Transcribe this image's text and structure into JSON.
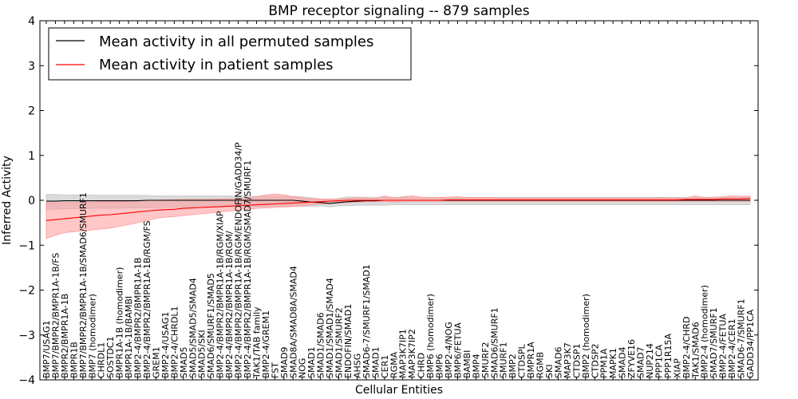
{
  "chart_data": {
    "type": "line",
    "title": "BMP receptor signaling -- 879 samples",
    "xlabel": "Cellular Entities",
    "ylabel": "Inferred Activity",
    "ylim": [
      -4,
      4
    ],
    "yticks": [
      "4",
      "3",
      "2",
      "1",
      "0",
      "−1",
      "−2",
      "−3",
      "−4"
    ],
    "ytick_values": [
      4,
      3,
      2,
      1,
      0,
      -1,
      -2,
      -3,
      -4
    ],
    "legend_position": "top-left",
    "colors": {
      "permuted": "#000000",
      "patient": "#ff0000",
      "permuted_band": "#c8c8c8",
      "patient_band": "#ff9999"
    },
    "categories": [
      "BMP7/USAG1",
      "BMP7/BMPR2/BMPR1A-1B/FS",
      "BMPR2/BMPR1A-1B",
      "BMPR1B",
      "BMP7/BMPR2/BMPR1A-1B/SMAD6/SMURF1",
      "BMP7 (homodimer)",
      "CHRDL1",
      "SOSTDC1",
      "BMPR1A-1B (homodimer)",
      "BMPR1A-1B/BAMBI",
      "BMP2-4/BMPR2/BMPR1A-1B",
      "BMP2-4/BMPR2/BMPR1A-1B/RGM/FS",
      "GREM1",
      "BMP2-4/USAG1",
      "BMP2-4/CHRDL1",
      "SMAD5",
      "SMAD5/SMAD5/SMAD4",
      "SMAD5/SKI",
      "SMAD6/SMURF1/SMAD5",
      "BMP2-4/BMPR2/BMPR1A-1B/RGM/XIAP",
      "BMP2-4/BMPR2/BMPR1A-1B/RGM/",
      "BMP2-4/BMPR2/BMPR1A-1B/RGM/ENDOFIN/GADD34/P",
      "BMP2-4/BMPR2/BMPR1A-1B/RGM/SMAD7/SMURF1",
      "TAK1/TAB family",
      "BMP2-4/GREM1",
      "FST",
      "SMAD9",
      "SMAD8A/SMAD8A/SMAD4",
      "NOG",
      "SMAD1",
      "SMAD1/SMAD6",
      "SMAD1/SMAD1/SMAD4",
      "SMAD1/SMURF2",
      "ENDOFIN/SMAD1",
      "AHSG",
      "SMAD6-7/SMURF1/SMAD1",
      "SMAD1",
      "CER1",
      "RGMA",
      "MAP3K7IP1",
      "MAP3K7IP2",
      "CHRD",
      "BMP6 (homodimer)",
      "BMP6",
      "BMP2-4/NOG",
      "BMP6/FETUA",
      "BAMBI",
      "BMP4",
      "SMURF2",
      "SMAD6/SMURF1",
      "SMURF1",
      "BMP2",
      "CTDSPL",
      "BMPR1A",
      "RGMB",
      "SKI",
      "SMAD6",
      "MAP3K7",
      "CTDSP1",
      "BMP2 (homodimer)",
      "CTDSP2",
      "PPM1A",
      "MAPK1",
      "SMAD4",
      "ZFYVE16",
      "SMAD7",
      "NUP214",
      "PPP1CA",
      "PPP1R15A",
      "XIAP",
      "BMP2-4/CHRD",
      "TAK1/SMAD6",
      "BMP2-4 (homodimer)",
      "SMAD7/SMURF1",
      "BMP2-4/FETUA",
      "BMP2-4/CER1",
      "SMAD6-7/SMURF1",
      "GADD34/PP1CA"
    ],
    "series": [
      {
        "name": "Mean activity in all permuted samples",
        "values": [
          -0.02,
          -0.02,
          -0.01,
          -0.01,
          -0.01,
          -0.01,
          -0.01,
          -0.01,
          -0.01,
          -0.01,
          -0.01,
          0.0,
          0.0,
          0.0,
          0.0,
          0.0,
          0.0,
          0.0,
          0.0,
          0.0,
          0.0,
          0.0,
          0.0,
          0.0,
          0.0,
          0.0,
          0.0,
          0.0,
          -0.02,
          -0.04,
          -0.05,
          -0.07,
          -0.05,
          -0.03,
          -0.02,
          -0.01,
          -0.01,
          0.0,
          0.0,
          0.0,
          0.0,
          0.0,
          0.0,
          0.0,
          0.0,
          0.0,
          0.0,
          0.0,
          0.0,
          0.0,
          0.0,
          0.0,
          0.0,
          0.0,
          0.0,
          0.0,
          0.0,
          0.0,
          0.0,
          0.0,
          0.0,
          0.0,
          0.0,
          0.0,
          0.0,
          0.0,
          0.0,
          0.0,
          0.0,
          0.0,
          0.0,
          0.0,
          0.0,
          0.0,
          0.0,
          0.0,
          0.0,
          0.0
        ],
        "lower": [
          -0.2,
          -0.2,
          -0.19,
          -0.19,
          -0.19,
          -0.18,
          -0.18,
          -0.18,
          -0.18,
          -0.17,
          -0.17,
          -0.17,
          -0.17,
          -0.16,
          -0.16,
          -0.16,
          -0.16,
          -0.15,
          -0.15,
          -0.15,
          -0.15,
          -0.14,
          -0.14,
          -0.14,
          -0.14,
          -0.13,
          -0.13,
          -0.13,
          -0.13,
          -0.14,
          -0.12,
          -0.15,
          -0.12,
          -0.12,
          -0.11,
          -0.11,
          -0.11,
          -0.11,
          -0.1,
          -0.1,
          -0.1,
          -0.1,
          -0.1,
          -0.1,
          -0.1,
          -0.1,
          -0.1,
          -0.1,
          -0.1,
          -0.1,
          -0.1,
          -0.1,
          -0.1,
          -0.1,
          -0.1,
          -0.1,
          -0.1,
          -0.1,
          -0.1,
          -0.1,
          -0.1,
          -0.1,
          -0.1,
          -0.1,
          -0.1,
          -0.1,
          -0.1,
          -0.1,
          -0.1,
          -0.1,
          -0.1,
          -0.1,
          -0.1,
          -0.1,
          -0.1,
          -0.1,
          -0.1,
          -0.1
        ],
        "upper": [
          0.13,
          0.13,
          0.12,
          0.12,
          0.12,
          0.12,
          0.11,
          0.11,
          0.11,
          0.11,
          0.11,
          0.11,
          0.1,
          0.1,
          0.1,
          0.1,
          0.1,
          0.1,
          0.1,
          0.1,
          0.1,
          0.09,
          0.09,
          0.09,
          0.09,
          0.09,
          0.09,
          0.09,
          0.08,
          0.06,
          0.03,
          0.02,
          0.04,
          0.08,
          0.07,
          0.07,
          0.07,
          0.07,
          0.07,
          0.07,
          0.07,
          0.07,
          0.07,
          0.07,
          0.07,
          0.07,
          0.07,
          0.07,
          0.07,
          0.07,
          0.07,
          0.07,
          0.07,
          0.07,
          0.07,
          0.07,
          0.07,
          0.07,
          0.07,
          0.07,
          0.07,
          0.07,
          0.07,
          0.07,
          0.07,
          0.07,
          0.07,
          0.07,
          0.07,
          0.07,
          0.07,
          0.07,
          0.07,
          0.07,
          0.07,
          0.07,
          0.07,
          0.07
        ]
      },
      {
        "name": "Mean activity in patient samples",
        "values": [
          -0.45,
          -0.43,
          -0.41,
          -0.39,
          -0.37,
          -0.35,
          -0.33,
          -0.32,
          -0.3,
          -0.28,
          -0.26,
          -0.24,
          -0.22,
          -0.21,
          -0.2,
          -0.18,
          -0.17,
          -0.16,
          -0.15,
          -0.14,
          -0.13,
          -0.12,
          -0.11,
          -0.1,
          -0.09,
          -0.08,
          -0.07,
          -0.06,
          -0.05,
          -0.04,
          -0.03,
          -0.02,
          -0.01,
          0.0,
          0.0,
          0.0,
          0.0,
          0.0,
          0.0,
          0.0,
          0.0,
          0.0,
          0.0,
          0.0,
          0.01,
          0.01,
          0.01,
          0.01,
          0.01,
          0.01,
          0.01,
          0.01,
          0.01,
          0.01,
          0.01,
          0.01,
          0.01,
          0.01,
          0.01,
          0.01,
          0.01,
          0.01,
          0.01,
          0.01,
          0.01,
          0.01,
          0.01,
          0.01,
          0.01,
          0.01,
          0.02,
          0.02,
          0.02,
          0.02,
          0.03,
          0.03,
          0.03,
          0.04
        ],
        "lower": [
          -0.85,
          -0.78,
          -0.72,
          -0.7,
          -0.68,
          -0.66,
          -0.64,
          -0.62,
          -0.58,
          -0.54,
          -0.5,
          -0.45,
          -0.4,
          -0.38,
          -0.36,
          -0.34,
          -0.32,
          -0.3,
          -0.28,
          -0.26,
          -0.24,
          -0.22,
          -0.2,
          -0.18,
          -0.17,
          -0.16,
          -0.15,
          -0.14,
          -0.12,
          -0.1,
          -0.08,
          -0.07,
          -0.06,
          -0.05,
          -0.04,
          -0.03,
          -0.03,
          -0.02,
          -0.04,
          -0.02,
          -0.02,
          -0.02,
          -0.02,
          -0.02,
          -0.02,
          -0.02,
          -0.02,
          -0.02,
          -0.02,
          -0.02,
          -0.02,
          -0.02,
          -0.02,
          -0.02,
          -0.02,
          -0.02,
          -0.02,
          -0.02,
          -0.02,
          -0.02,
          -0.02,
          -0.02,
          -0.02,
          -0.02,
          -0.02,
          -0.02,
          -0.02,
          -0.02,
          -0.02,
          -0.02,
          -0.02,
          -0.02,
          -0.02,
          -0.02,
          -0.02,
          -0.02,
          -0.02,
          -0.02
        ],
        "upper": [
          -0.05,
          -0.06,
          -0.05,
          -0.05,
          -0.04,
          -0.04,
          -0.03,
          -0.03,
          -0.03,
          -0.02,
          -0.01,
          0.0,
          0.0,
          0.01,
          0.01,
          0.02,
          0.02,
          0.02,
          0.02,
          0.03,
          0.03,
          0.04,
          0.05,
          0.08,
          0.12,
          0.14,
          0.12,
          0.08,
          0.05,
          0.03,
          0.03,
          0.03,
          0.03,
          0.04,
          0.06,
          0.05,
          0.04,
          0.1,
          0.05,
          0.08,
          0.1,
          0.07,
          0.06,
          0.06,
          0.07,
          0.08,
          0.06,
          0.06,
          0.06,
          0.06,
          0.05,
          0.05,
          0.05,
          0.05,
          0.05,
          0.05,
          0.05,
          0.05,
          0.05,
          0.05,
          0.05,
          0.05,
          0.05,
          0.05,
          0.05,
          0.05,
          0.05,
          0.06,
          0.05,
          0.05,
          0.05,
          0.1,
          0.06,
          0.07,
          0.08,
          0.1,
          0.09,
          0.09
        ]
      }
    ]
  }
}
